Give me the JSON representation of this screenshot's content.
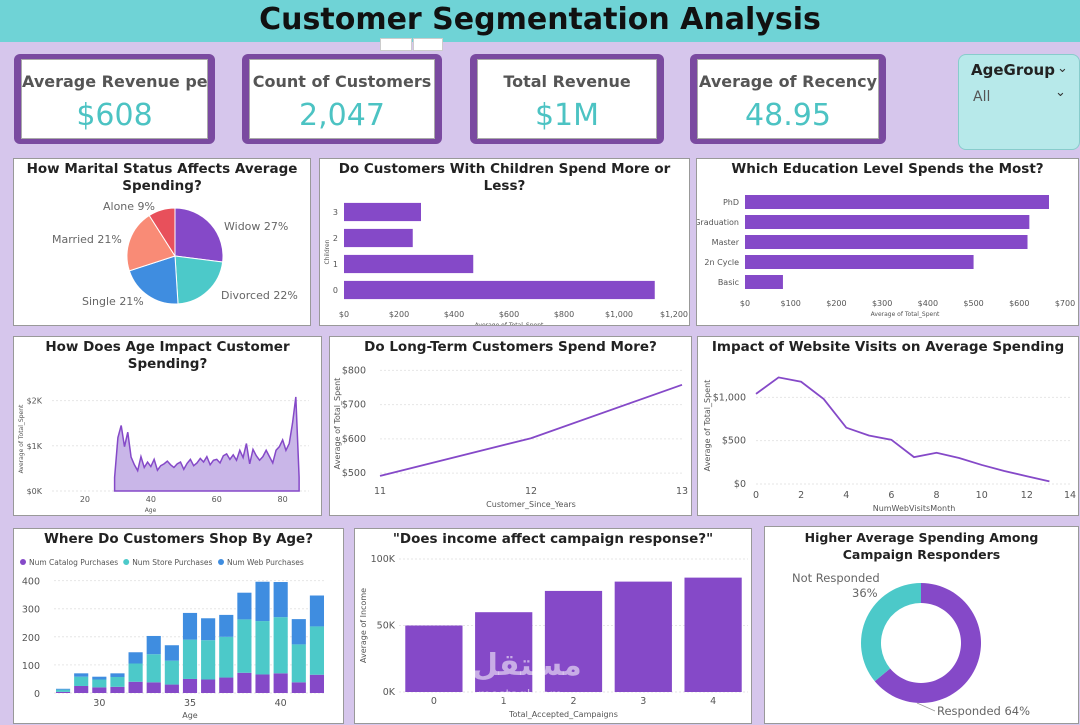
{
  "header": {
    "title": "Customer Segmentation Analysis"
  },
  "kpis": [
    {
      "label": "Average Revenue pe...",
      "value": "$608"
    },
    {
      "label": "Count of Customers",
      "value": "2,047"
    },
    {
      "label": "Total Revenue",
      "value": "$1M"
    },
    {
      "label": "Average of Recency",
      "value": "48.95"
    }
  ],
  "slicer": {
    "title": "AgeGroup",
    "value": "All"
  },
  "colors": {
    "purple": "#8549c8",
    "teal": "#4cc9c9",
    "blue": "#3f8de0",
    "salmon": "#f98b76",
    "red": "#e8505b"
  },
  "watermark": {
    "arabic": "مستقل",
    "latin": "mostaql.com"
  },
  "chart_data": [
    {
      "id": "marital",
      "type": "pie",
      "title": "How Marital Status Affects Average Spending?",
      "slices": [
        {
          "label": "Widow 27%",
          "value": 27,
          "color": "#8549c8"
        },
        {
          "label": "Divorced 22%",
          "value": 22,
          "color": "#4cc9c9"
        },
        {
          "label": "Single 21%",
          "value": 21,
          "color": "#3f8de0"
        },
        {
          "label": "Married 21%",
          "value": 21,
          "color": "#f98b76"
        },
        {
          "label": "Alone 9%",
          "value": 9,
          "color": "#e8505b"
        }
      ]
    },
    {
      "id": "children",
      "type": "bar",
      "orientation": "horizontal",
      "title": "Do Customers With Children Spend More or Less?",
      "categories": [
        "3",
        "2",
        "1",
        "0"
      ],
      "values": [
        280,
        250,
        470,
        1130
      ],
      "xlabel": "Average of Total_Spent",
      "ylabel": "Children",
      "xticks": [
        "$0",
        "$200",
        "$400",
        "$600",
        "$800",
        "$1,000",
        "$1,200"
      ],
      "xlim": [
        0,
        1200
      ]
    },
    {
      "id": "education",
      "type": "bar",
      "orientation": "horizontal",
      "title": "Which Education Level Spends the Most?",
      "categories": [
        "PhD",
        "Graduation",
        "Master",
        "2n Cycle",
        "Basic"
      ],
      "values": [
        665,
        622,
        618,
        500,
        83
      ],
      "xlabel": "Average of Total_Spent",
      "xticks": [
        "$0",
        "$100",
        "$200",
        "$300",
        "$400",
        "$500",
        "$600",
        "$700"
      ],
      "xlim": [
        0,
        700
      ]
    },
    {
      "id": "age",
      "type": "area",
      "title": "How Does Age Impact Customer Spending?",
      "x": [
        29,
        30,
        31,
        32,
        33,
        34,
        35,
        36,
        37,
        38,
        39,
        40,
        41,
        42,
        43,
        44,
        45,
        46,
        47,
        48,
        49,
        50,
        51,
        52,
        53,
        54,
        55,
        56,
        57,
        58,
        59,
        60,
        61,
        62,
        63,
        64,
        65,
        66,
        67,
        68,
        69,
        70,
        71,
        72,
        73,
        74,
        75,
        76,
        77,
        78,
        79,
        80,
        81,
        82,
        83,
        84,
        85
      ],
      "values": [
        300,
        1180,
        1450,
        980,
        1300,
        750,
        580,
        450,
        760,
        520,
        640,
        540,
        700,
        460,
        560,
        600,
        660,
        580,
        520,
        600,
        640,
        480,
        610,
        700,
        560,
        620,
        720,
        640,
        760,
        580,
        680,
        700,
        620,
        780,
        820,
        700,
        800,
        680,
        900,
        740,
        1050,
        600,
        920,
        780,
        680,
        760,
        900,
        760,
        620,
        900,
        980,
        1130,
        900,
        1050,
        1500,
        2080,
        300
      ],
      "xlabel": "Age",
      "ylabel": "Average of Total_Spent",
      "yticks": [
        "$0K",
        "$1K",
        "$2K"
      ],
      "xticks": [
        "20",
        "40",
        "60",
        "80"
      ],
      "xlim": [
        10,
        88
      ],
      "ylim": [
        0,
        2300
      ]
    },
    {
      "id": "tenure",
      "type": "line",
      "title": "Do Long-Term Customers Spend More?",
      "x": [
        11,
        12,
        13
      ],
      "values": [
        492,
        602,
        758
      ],
      "xlabel": "Customer_Since_Years",
      "ylabel": "Average of Total_Spent",
      "yticks": [
        "$500",
        "$600",
        "$700",
        "$800"
      ],
      "xticks": [
        "11",
        "12",
        "13"
      ],
      "xlim": [
        11,
        13
      ],
      "ylim": [
        480,
        810
      ]
    },
    {
      "id": "web",
      "type": "line",
      "title": "Impact of Website Visits on Average Spending",
      "x": [
        0,
        1,
        2,
        3,
        4,
        5,
        6,
        7,
        8,
        9,
        10,
        11,
        12,
        13
      ],
      "values": [
        1040,
        1230,
        1180,
        980,
        650,
        560,
        510,
        310,
        360,
        300,
        220,
        150,
        90,
        30
      ],
      "xlabel": "NumWebVisitsMonth",
      "ylabel": "Average of Total_Spent",
      "yticks": [
        "$0",
        "$500",
        "$1,000"
      ],
      "xticks": [
        "0",
        "2",
        "4",
        "6",
        "8",
        "10",
        "12",
        "14"
      ],
      "xlim": [
        0,
        14
      ],
      "ylim": [
        0,
        1350
      ]
    },
    {
      "id": "shop",
      "type": "bar",
      "stacked": true,
      "title": "Where Do Customers Shop By Age?",
      "x": [
        28,
        29,
        30,
        31,
        32,
        33,
        34,
        35,
        36,
        37,
        38,
        39,
        40,
        41,
        42
      ],
      "series": [
        {
          "name": "Num Catalog Purchases",
          "color": "#8549c8",
          "values": [
            4,
            25,
            20,
            22,
            40,
            38,
            30,
            50,
            48,
            55,
            72,
            66,
            70,
            38,
            65
          ]
        },
        {
          "name": "Num Store Purchases",
          "color": "#4cc9c9",
          "values": [
            8,
            33,
            28,
            35,
            65,
            100,
            85,
            140,
            140,
            145,
            190,
            190,
            200,
            135,
            172
          ]
        },
        {
          "name": "Num Web Purchases",
          "color": "#3f8de0",
          "values": [
            3,
            12,
            10,
            13,
            40,
            65,
            55,
            95,
            78,
            78,
            95,
            140,
            125,
            90,
            110
          ]
        }
      ],
      "xlabel": "Age",
      "yticks": [
        "0",
        "100",
        "200",
        "300",
        "400"
      ],
      "xticks": [
        "30",
        "35",
        "40"
      ],
      "ylim": [
        0,
        420
      ]
    },
    {
      "id": "income",
      "type": "bar",
      "title": "\"Does income affect campaign response?\"",
      "categories": [
        "0",
        "1",
        "2",
        "3",
        "4"
      ],
      "values": [
        50000,
        60000,
        76000,
        83000,
        86000
      ],
      "xlabel": "Total_Accepted_Campaigns",
      "ylabel": "Average of Income",
      "yticks": [
        "0K",
        "50K",
        "100K"
      ],
      "ylim": [
        0,
        100000
      ]
    },
    {
      "id": "responders",
      "type": "pie",
      "donut": true,
      "title": "Higher Average Spending Among Campaign Responders",
      "slices": [
        {
          "label": "Responded",
          "pct": "64%",
          "value": 64,
          "color": "#8549c8"
        },
        {
          "label": "Not Responded",
          "pct": "36%",
          "value": 36,
          "color": "#4cc9c9"
        }
      ]
    }
  ]
}
